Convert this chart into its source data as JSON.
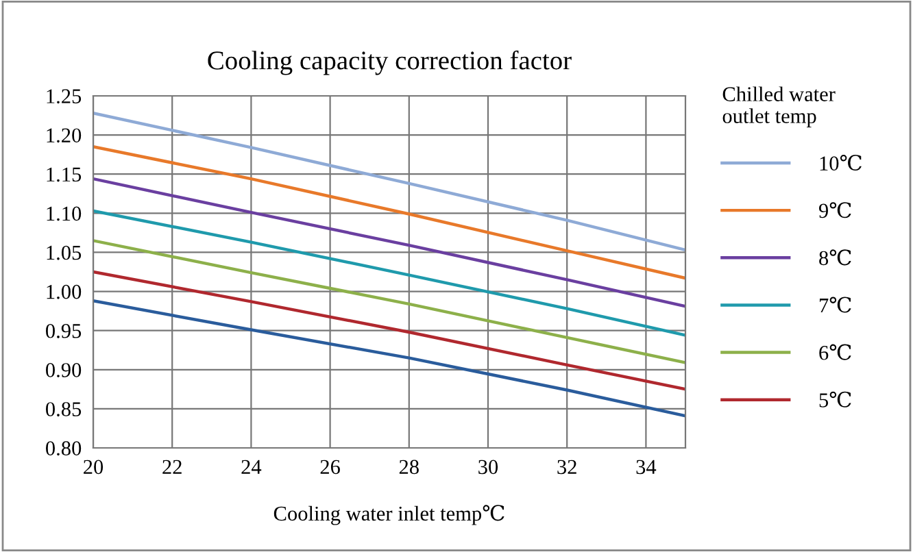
{
  "chart_data": {
    "type": "line",
    "title": "Cooling capacity correction factor",
    "xlabel": "Cooling water inlet temp℃",
    "legend_title": "Chilled water\noutlet temp",
    "x": [
      20,
      24,
      28,
      32,
      35
    ],
    "series": [
      {
        "name": "10℃",
        "color": "#8eaad6",
        "values": [
          1.228,
          1.184,
          1.138,
          1.091,
          1.053
        ]
      },
      {
        "name": "9℃",
        "color": "#e8792a",
        "values": [
          1.185,
          1.144,
          1.099,
          1.052,
          1.017
        ]
      },
      {
        "name": "8℃",
        "color": "#6a3fa0",
        "values": [
          1.144,
          1.101,
          1.059,
          1.015,
          0.981
        ]
      },
      {
        "name": "7℃",
        "color": "#1f9aac",
        "values": [
          1.103,
          1.063,
          1.021,
          0.978,
          0.944
        ]
      },
      {
        "name": "6℃",
        "color": "#8db04a",
        "values": [
          1.065,
          1.024,
          0.984,
          0.941,
          0.909
        ]
      },
      {
        "name": "5℃",
        "color": "#b0282e",
        "values": [
          1.025,
          0.987,
          0.948,
          0.906,
          0.875
        ]
      },
      {
        "color": "#2a5c9c",
        "values": [
          0.988,
          0.951,
          0.915,
          0.874,
          0.841
        ]
      }
    ],
    "xlim": [
      20,
      35
    ],
    "xticks": [
      20,
      22,
      24,
      26,
      28,
      30,
      32,
      34
    ],
    "ylim": [
      0.8,
      1.25
    ],
    "yticks": [
      {
        "value": 0.8,
        "label": "0.80"
      },
      {
        "value": 0.85,
        "label": "0.85"
      },
      {
        "value": 0.9,
        "label": "0.90"
      },
      {
        "value": 0.95,
        "label": "0.95"
      },
      {
        "value": 1.0,
        "label": "1.00"
      },
      {
        "value": 1.05,
        "label": "1.05"
      },
      {
        "value": 1.1,
        "label": "1.10"
      },
      {
        "value": 1.15,
        "label": "1.15"
      },
      {
        "value": 1.2,
        "label": "1.20"
      },
      {
        "value": 1.25,
        "label": "1.25"
      }
    ],
    "grid": true,
    "legend": "right",
    "marker": "none",
    "line_style": "solid"
  }
}
